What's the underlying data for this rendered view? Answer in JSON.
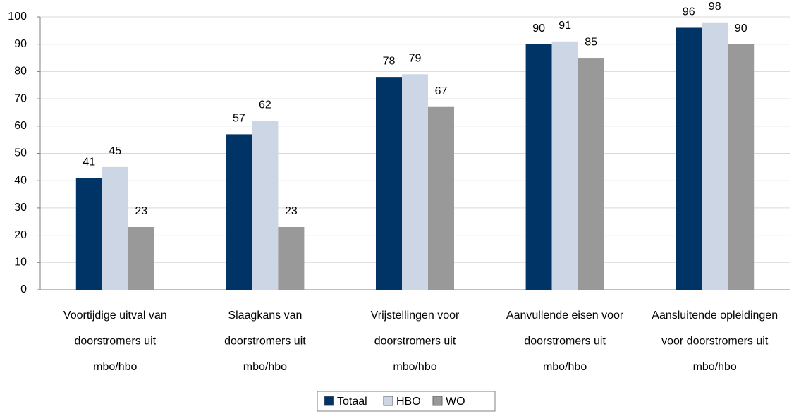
{
  "chart_data": {
    "type": "bar",
    "categories": [
      "Voortijdige uitval van\ndoorstromers uit\nmbo/hbo",
      "Slaagkans van\ndoorstromers uit\nmbo/hbo",
      "Vrijstellingen voor\ndoorstromers uit\nmbo/hbo",
      "Aanvullende eisen voor\ndoorstromers uit\nmbo/hbo",
      "Aansluitende opleidingen\nvoor doorstromers uit\nmbo/hbo"
    ],
    "series": [
      {
        "name": "Totaal",
        "color": "#003366",
        "values": [
          41,
          57,
          78,
          90,
          96
        ]
      },
      {
        "name": "HBO",
        "color": "#ccd6e4",
        "values": [
          45,
          62,
          79,
          91,
          98
        ]
      },
      {
        "name": "WO",
        "color": "#999999",
        "values": [
          23,
          23,
          67,
          85,
          90
        ]
      }
    ],
    "ylim": [
      0,
      100
    ],
    "yticks": [
      0,
      10,
      20,
      30,
      40,
      50,
      60,
      70,
      80,
      90,
      100
    ],
    "grid": true
  }
}
